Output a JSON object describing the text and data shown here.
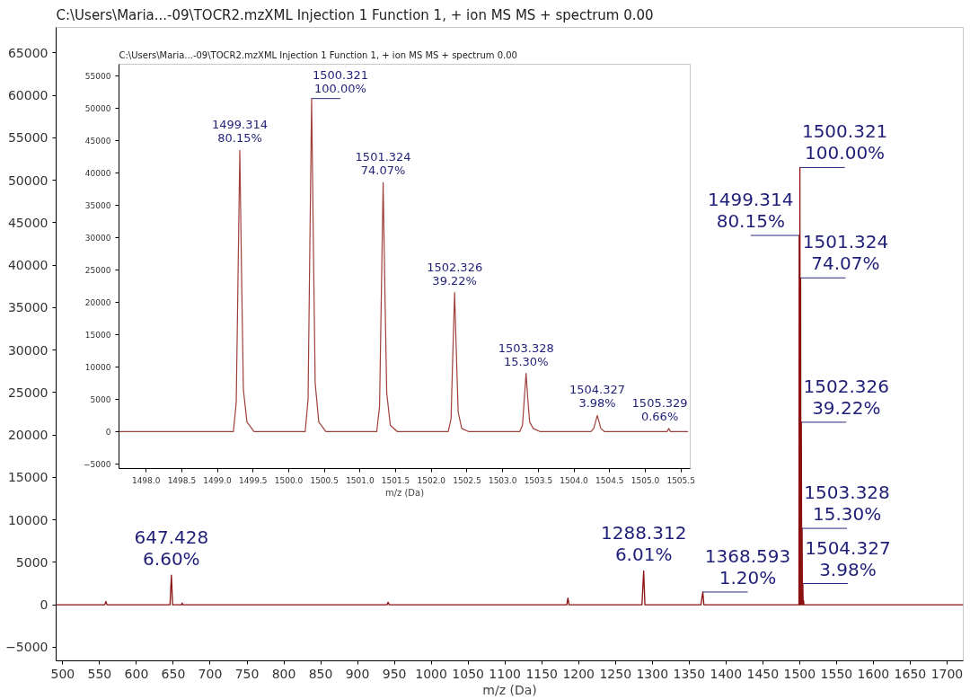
{
  "chart_data": [
    {
      "type": "line",
      "title": "C:\\Users\\Maria...-09\\TOCR2.mzXML Injection 1 Function 1, + ion MS MS + spectrum 0.00",
      "xlabel": "m/z (Da)",
      "color": "#8b1010",
      "x": [
        491,
        557,
        558.5,
        560,
        645.5,
        647.428,
        649,
        661,
        662,
        663,
        940,
        941.5,
        943,
        1184,
        1185.5,
        1187,
        1286,
        1288.312,
        1290,
        1366,
        1368.593,
        1370,
        1499.0,
        1499.314,
        1499.8,
        1500.321,
        1500.8,
        1501.324,
        1501.8,
        1502.326,
        1502.8,
        1503.328,
        1503.8,
        1504.327,
        1504.8,
        1505.329,
        1505.8,
        1722
      ],
      "values": [
        0,
        0,
        400,
        0,
        0,
        3500,
        0,
        0,
        200,
        0,
        0,
        300,
        0,
        0,
        800,
        0,
        0,
        4000,
        0,
        0,
        1500,
        0,
        0,
        43500,
        0,
        51500,
        0,
        38500,
        0,
        21500,
        0,
        9000,
        0,
        2500,
        0,
        500,
        0,
        0
      ],
      "xlim": [
        491,
        1722
      ],
      "ylim": [
        -6600,
        68000
      ],
      "xticks": [
        500,
        550,
        600,
        650,
        700,
        750,
        800,
        850,
        900,
        950,
        1000,
        1050,
        1100,
        1150,
        1200,
        1250,
        1300,
        1350,
        1400,
        1450,
        1500,
        1550,
        1600,
        1650,
        1700
      ],
      "yticks": [
        -5000,
        0,
        5000,
        10000,
        15000,
        20000,
        25000,
        30000,
        35000,
        40000,
        45000,
        50000,
        55000,
        60000,
        65000
      ],
      "annotations": [
        {
          "text": "647.428\n6.60%",
          "x": 647.428,
          "y": 3500
        },
        {
          "text": "1288.312\n6.01%",
          "x": 1288.312,
          "y": 4000
        },
        {
          "text": "1368.593\n1.20%",
          "x": 1368.593,
          "y": 1500
        },
        {
          "text": "1499.314\n80.15%",
          "x": 1499.314,
          "y": 43500
        },
        {
          "text": "1500.321\n100.00%",
          "x": 1500.321,
          "y": 51500
        },
        {
          "text": "1501.324\n74.07%",
          "x": 1501.324,
          "y": 38500
        },
        {
          "text": "1502.326\n39.22%",
          "x": 1502.326,
          "y": 21500
        },
        {
          "text": "1503.328\n15.30%",
          "x": 1503.328,
          "y": 9000
        },
        {
          "text": "1504.327\n3.98%",
          "x": 1504.327,
          "y": 2500
        }
      ]
    },
    {
      "type": "line",
      "title": "C:\\Users\\Maria...-09\\TOCR2.mzXML Injection 1 Function 1, + ion MS MS + spectrum 0.00",
      "xlabel": "m/z (Da)",
      "color": "#a0403c",
      "x": [
        1497.62,
        1499.224,
        1499.264,
        1499.289,
        1499.314,
        1499.339,
        1499.364,
        1499.414,
        1499.514,
        1500.231,
        1500.271,
        1500.296,
        1500.321,
        1500.346,
        1500.371,
        1500.421,
        1500.521,
        1501.234,
        1501.274,
        1501.299,
        1501.324,
        1501.349,
        1501.374,
        1501.424,
        1501.524,
        1502.236,
        1502.276,
        1502.301,
        1502.326,
        1502.351,
        1502.376,
        1502.426,
        1502.526,
        1503.238,
        1503.278,
        1503.303,
        1503.328,
        1503.353,
        1503.378,
        1503.428,
        1503.528,
        1504.237,
        1504.277,
        1504.302,
        1504.327,
        1504.352,
        1504.377,
        1504.427,
        1504.527,
        1505.239,
        1505.279,
        1505.304,
        1505.329,
        1505.354,
        1505.379,
        1505.429,
        1505.529,
        1505.6
      ],
      "values": [
        0,
        0,
        4500,
        24000,
        43500,
        24000,
        6500,
        1500,
        0,
        0,
        5000,
        28500,
        51500,
        28500,
        7500,
        1500,
        0,
        0,
        4000,
        21500,
        38500,
        21500,
        6000,
        1000,
        0,
        0,
        2000,
        12000,
        21500,
        12000,
        3000,
        500,
        0,
        0,
        1000,
        5000,
        9000,
        5000,
        1500,
        500,
        0,
        0,
        500,
        1500,
        2500,
        1500,
        500,
        0,
        0,
        0,
        0,
        0,
        500,
        0,
        0,
        0,
        0,
        0
      ],
      "xlim": [
        1497.62,
        1505.63
      ],
      "ylim": [
        -5700,
        56800
      ],
      "xticks": [
        {
          "value": 1498,
          "label": "1498.0"
        },
        {
          "value": 1498.5,
          "label": "1498.5"
        },
        {
          "value": 1499,
          "label": "1499.0"
        },
        {
          "value": 1499.5,
          "label": "1499.5"
        },
        {
          "value": 1500,
          "label": "1500.0"
        },
        {
          "value": 1500.5,
          "label": "1500.5"
        },
        {
          "value": 1501,
          "label": "1501.0"
        },
        {
          "value": 1501.5,
          "label": "1501.5"
        },
        {
          "value": 1502,
          "label": "1502.0"
        },
        {
          "value": 1502.5,
          "label": "1502.5"
        },
        {
          "value": 1503,
          "label": "1503.0"
        },
        {
          "value": 1503.5,
          "label": "1503.5"
        },
        {
          "value": 1504,
          "label": "1504.0"
        },
        {
          "value": 1504.5,
          "label": "1504.5"
        },
        {
          "value": 1505,
          "label": "1505.0"
        },
        {
          "value": 1505.5,
          "label": "1505.5"
        }
      ],
      "yticks": [
        -5000,
        0,
        5000,
        10000,
        15000,
        20000,
        25000,
        30000,
        35000,
        40000,
        45000,
        50000,
        55000
      ],
      "annotations": [
        {
          "text": "1499.314\n80.15%",
          "x": 1499.314,
          "y": 43500
        },
        {
          "text": "1500.321\n100.00%",
          "x": 1500.321,
          "y": 51500
        },
        {
          "text": "1501.324\n74.07%",
          "x": 1501.324,
          "y": 38500
        },
        {
          "text": "1502.326\n39.22%",
          "x": 1502.326,
          "y": 21500
        },
        {
          "text": "1503.328\n15.30%",
          "x": 1503.328,
          "y": 9000
        },
        {
          "text": "1504.327\n3.98%",
          "x": 1504.327,
          "y": 2500
        },
        {
          "text": "1505.329\n0.66%",
          "x": 1505.329,
          "y": 500
        }
      ]
    }
  ]
}
